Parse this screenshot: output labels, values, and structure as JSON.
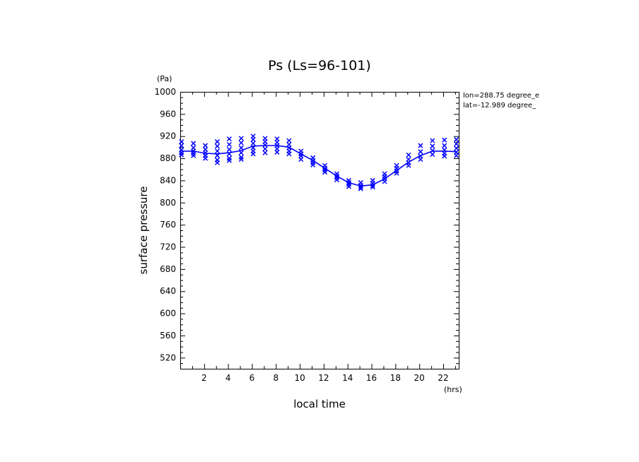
{
  "chart_data": {
    "type": "line",
    "title": "Ps (Ls=96-101)",
    "xlabel": "local time",
    "ylabel": "surface pressure",
    "x_unit": "(hrs)",
    "y_unit": "(Pa)",
    "xlim": [
      0,
      23.3
    ],
    "ylim": [
      500,
      1000
    ],
    "x_ticks": [
      2,
      4,
      6,
      8,
      10,
      12,
      14,
      16,
      18,
      20,
      22
    ],
    "y_ticks": [
      520,
      560,
      600,
      640,
      680,
      720,
      760,
      800,
      840,
      880,
      920,
      960,
      1000
    ],
    "grid": false,
    "legend": "none",
    "annotations": [
      "lon=288.75 degree_e",
      "lat=-12.989 degree_"
    ],
    "color": "#0000ff",
    "series": [
      {
        "kind": "line",
        "x": [
          0.1,
          1.1,
          2.1,
          3.1,
          4.1,
          5.1,
          6.1,
          7.1,
          8.1,
          9.1,
          10.1,
          11.1,
          12.1,
          13.1,
          14.1,
          15.1,
          16.1,
          17.1,
          18.1,
          19.1,
          20.1,
          21.1,
          22.1,
          23.1
        ],
        "values": [
          893,
          893,
          889,
          888,
          890,
          894,
          902,
          903,
          903,
          900,
          888,
          876,
          862,
          848,
          836,
          830,
          832,
          843,
          858,
          873,
          885,
          893,
          893,
          892
        ]
      },
      {
        "kind": "scatter",
        "marker": "x",
        "x": [
          0.1,
          0.1,
          0.1,
          0.1,
          0.1,
          1.1,
          1.1,
          1.1,
          1.1,
          1.1,
          2.1,
          2.1,
          2.1,
          2.1,
          2.1,
          3.1,
          3.1,
          3.1,
          3.1,
          3.1,
          3.1,
          4.1,
          4.1,
          4.1,
          4.1,
          4.1,
          4.1,
          5.1,
          5.1,
          5.1,
          5.1,
          5.1,
          5.1,
          6.1,
          6.1,
          6.1,
          6.1,
          6.1,
          6.1,
          7.1,
          7.1,
          7.1,
          7.1,
          7.1,
          8.1,
          8.1,
          8.1,
          8.1,
          8.1,
          9.1,
          9.1,
          9.1,
          9.1,
          9.1,
          10.1,
          10.1,
          10.1,
          10.1,
          11.1,
          11.1,
          11.1,
          11.1,
          12.1,
          12.1,
          12.1,
          12.1,
          13.1,
          13.1,
          13.1,
          13.1,
          14.1,
          14.1,
          14.1,
          14.1,
          15.1,
          15.1,
          15.1,
          15.1,
          16.1,
          16.1,
          16.1,
          16.1,
          17.1,
          17.1,
          17.1,
          17.1,
          18.1,
          18.1,
          18.1,
          18.1,
          19.1,
          19.1,
          19.1,
          19.1,
          20.1,
          20.1,
          20.1,
          20.1,
          21.1,
          21.1,
          21.1,
          21.1,
          22.1,
          22.1,
          22.1,
          22.1,
          22.1,
          23.1,
          23.1,
          23.1,
          23.1,
          23.1
        ],
        "values": [
          910,
          903,
          895,
          890,
          886,
          907,
          899,
          893,
          889,
          885,
          903,
          896,
          890,
          885,
          880,
          910,
          902,
          893,
          885,
          877,
          872,
          915,
          905,
          896,
          888,
          880,
          876,
          916,
          908,
          899,
          890,
          882,
          878,
          920,
          914,
          907,
          899,
          893,
          888,
          916,
          910,
          904,
          897,
          890,
          915,
          909,
          903,
          897,
          891,
          912,
          905,
          899,
          893,
          888,
          893,
          888,
          884,
          878,
          881,
          876,
          872,
          868,
          867,
          862,
          859,
          855,
          852,
          848,
          845,
          841,
          840,
          836,
          833,
          829,
          836,
          831,
          828,
          825,
          840,
          835,
          831,
          828,
          852,
          847,
          843,
          838,
          867,
          862,
          857,
          853,
          886,
          878,
          872,
          867,
          903,
          892,
          884,
          878,
          912,
          902,
          894,
          887,
          913,
          903,
          895,
          889,
          884,
          914,
          906,
          898,
          891,
          885
        ]
      }
    ]
  }
}
